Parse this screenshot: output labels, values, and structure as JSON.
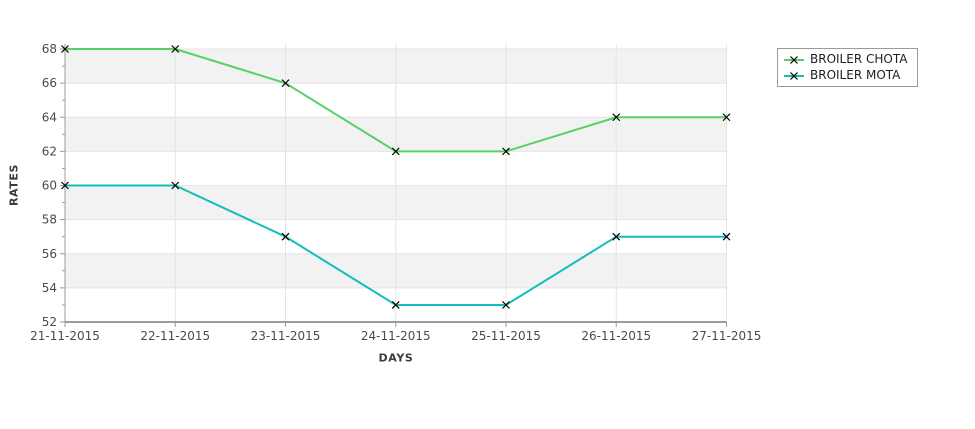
{
  "chart_data": {
    "type": "line",
    "title": "",
    "xlabel": "DAYS",
    "ylabel": "RATES",
    "x": [
      "21-11-2015",
      "22-11-2015",
      "23-11-2015",
      "24-11-2015",
      "25-11-2015",
      "26-11-2015",
      "27-11-2015"
    ],
    "series": [
      {
        "name": "BROILER CHOTA",
        "color": "#55d166",
        "values": [
          68,
          68,
          66,
          62,
          62,
          64,
          64
        ]
      },
      {
        "name": "BROILER MOTA",
        "color": "#12bdbd",
        "values": [
          60,
          60,
          57,
          53,
          53,
          57,
          57
        ]
      }
    ],
    "ylim": [
      52,
      68
    ],
    "yticks": [
      52,
      54,
      56,
      58,
      60,
      62,
      64,
      66,
      68
    ],
    "ytick_minor_step": 1,
    "marker": "x",
    "marker_color": "#000000",
    "grid": true,
    "band_colors": [
      "#f2f2f2",
      "#ffffff"
    ],
    "legend_position": "top-right"
  },
  "style_colors": {
    "gridline": "#e4e4e4",
    "band_gray": "#f2f2f2",
    "y_axis_line": "#9b9b9b",
    "x_axis_line": "#7a7a7a",
    "tick": "#9b9b9b",
    "tick_text": "#4b4b4b",
    "axis_title_text": "#3c3c3c",
    "legend_border": "#9b9b9b",
    "legend_text": "#1f1f1f"
  }
}
